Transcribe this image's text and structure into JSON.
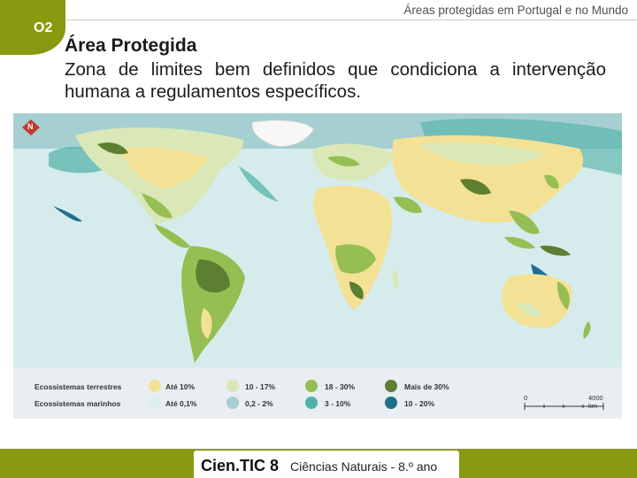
{
  "header": {
    "title": "Áreas protegidas em Portugal e no Mundo",
    "section": "O2"
  },
  "definition": {
    "term": "Área Protegida",
    "text": "Zona de limites bem definidos que condiciona a intervenção humana a regulamentos específicos."
  },
  "map": {
    "compass_label": "N",
    "legend": {
      "rows": [
        {
          "label": "Ecossistemas terrestres",
          "items": [
            {
              "label": "Até 10%",
              "color": "#f3e196"
            },
            {
              "label": "10 - 17%",
              "color": "#d9e8b6"
            },
            {
              "label": "18 - 30%",
              "color": "#95be53"
            },
            {
              "label": "Mais de 30%",
              "color": "#5c7f32"
            }
          ]
        },
        {
          "label": "Ecossistemas marinhos",
          "items": [
            {
              "label": "Até 0,1%",
              "color": "#dcecef"
            },
            {
              "label": "0,2 - 2%",
              "color": "#a6cfd1"
            },
            {
              "label": "3 - 10%",
              "color": "#4fb1a7"
            },
            {
              "label": "10 - 20%",
              "color": "#1f6f8f"
            }
          ]
        }
      ],
      "scale": {
        "start": "0",
        "end": "4000 km"
      }
    }
  },
  "footer": {
    "brand": "Cien.TIC 8",
    "course": "Ciências Naturais - 8.º ano"
  }
}
